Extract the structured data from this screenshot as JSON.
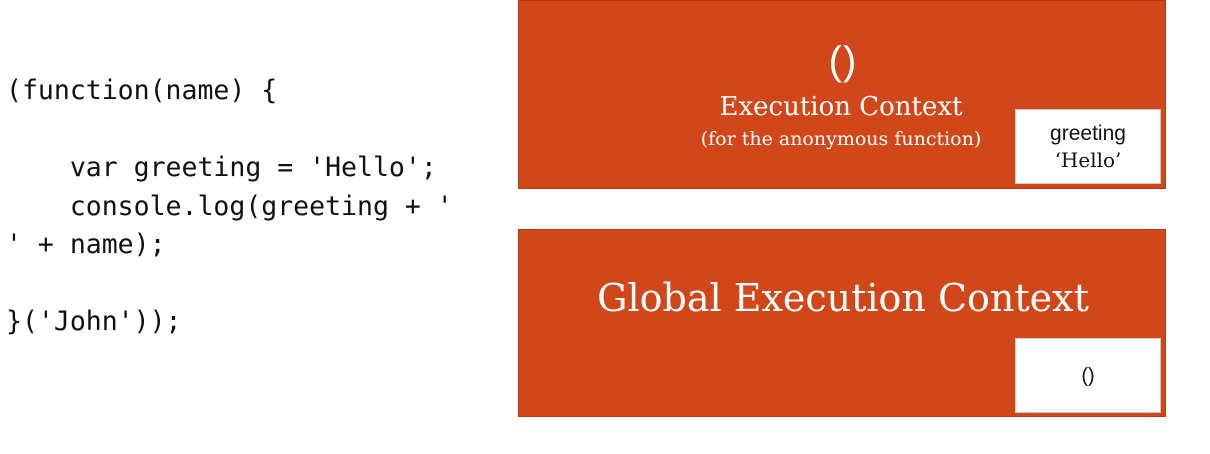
{
  "code": {
    "lines": [
      "(function(name) {",
      "",
      "    var greeting = 'Hello';",
      "    console.log(greeting + '",
      "' + name);",
      "",
      "}('John'));"
    ]
  },
  "function_context": {
    "symbol": "()",
    "title": "Execution Context",
    "subtitle": "(for the anonymous function)",
    "variable_name": "greeting",
    "variable_value": "‘Hello’"
  },
  "global_context": {
    "title": "Global Execution Context",
    "entry": "()"
  },
  "colors": {
    "context_fill": "#d14719",
    "variable_box_fill": "#ffffff",
    "text_light": "#ffffff",
    "text_dark": "#111111"
  }
}
